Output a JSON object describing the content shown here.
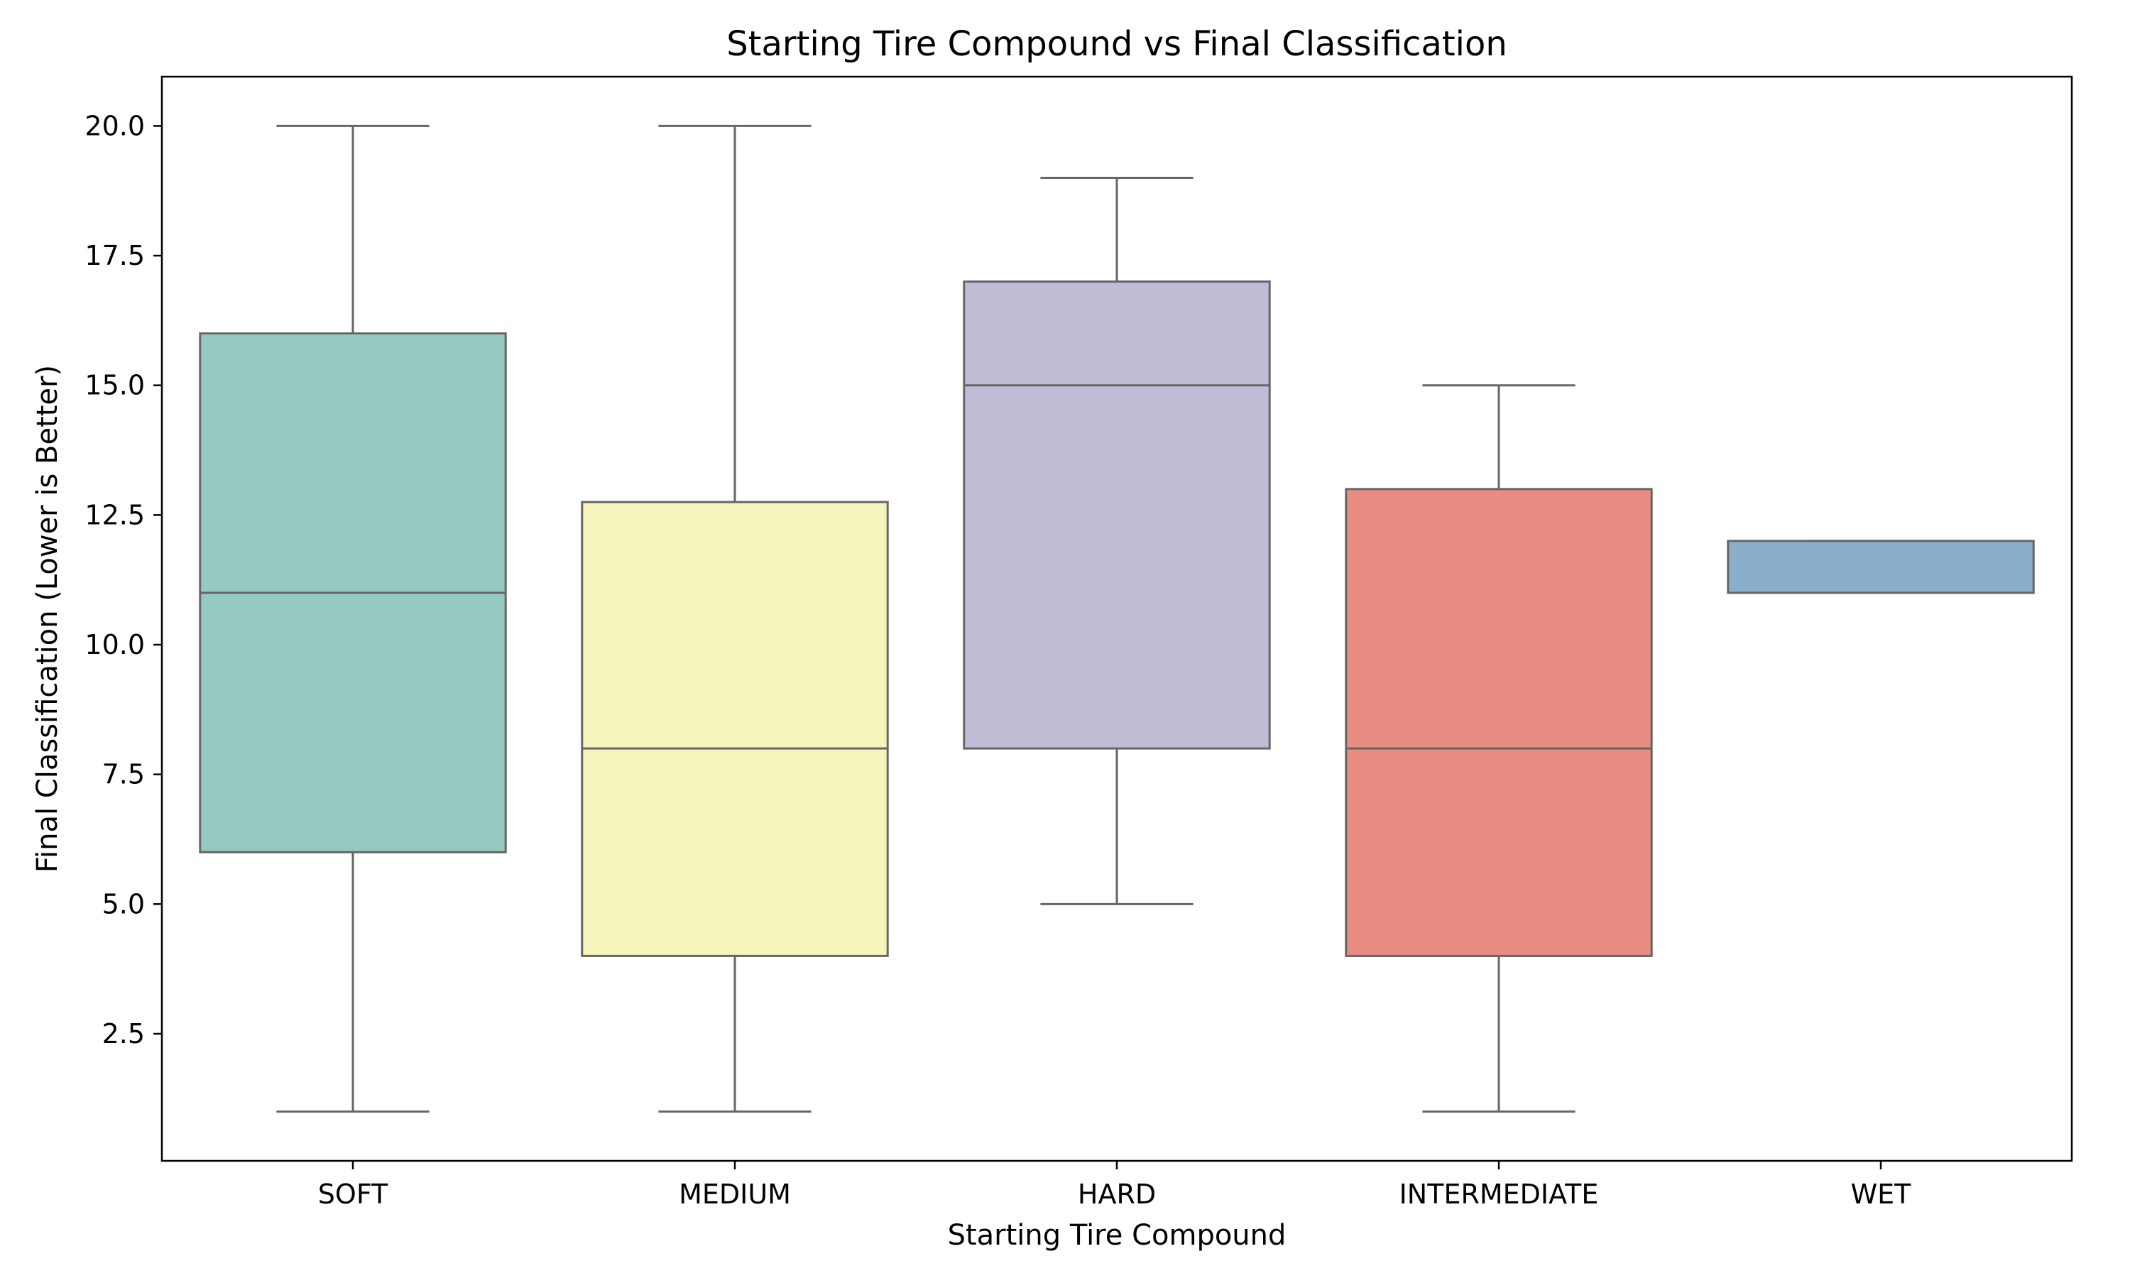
{
  "chart_data": {
    "type": "box",
    "title": "Starting Tire Compound vs Final Classification",
    "xlabel": "Starting Tire Compound",
    "ylabel": "Final Classification (Lower is Better)",
    "ylim": [
      0.05,
      20.95
    ],
    "yticks": [
      2.5,
      5.0,
      7.5,
      10.0,
      12.5,
      15.0,
      17.5,
      20.0
    ],
    "grid": false,
    "categories": [
      "SOFT",
      "MEDIUM",
      "HARD",
      "INTERMEDIATE",
      "WET"
    ],
    "boxes": [
      {
        "category": "SOFT",
        "whisker_low": 1,
        "q1": 6,
        "median": 11,
        "q3": 16,
        "whisker_high": 20,
        "color": "#96c9bf"
      },
      {
        "category": "MEDIUM",
        "whisker_low": 1,
        "q1": 4,
        "median": 8,
        "q3": 12.75,
        "whisker_high": 20,
        "color": "#f5f5bb"
      },
      {
        "category": "HARD",
        "whisker_low": 5,
        "q1": 8,
        "median": 15,
        "q3": 17,
        "whisker_high": 19,
        "color": "#c0bcd5"
      },
      {
        "category": "INTERMEDIATE",
        "whisker_low": 1,
        "q1": 4,
        "median": 8,
        "q3": 13,
        "whisker_high": 15,
        "color": "#e98d82"
      },
      {
        "category": "WET",
        "whisker_low": 11,
        "q1": 11,
        "median": 11,
        "q3": 12,
        "whisker_high": 12,
        "color": "#8bafca"
      }
    ],
    "line_color": "#666666"
  }
}
